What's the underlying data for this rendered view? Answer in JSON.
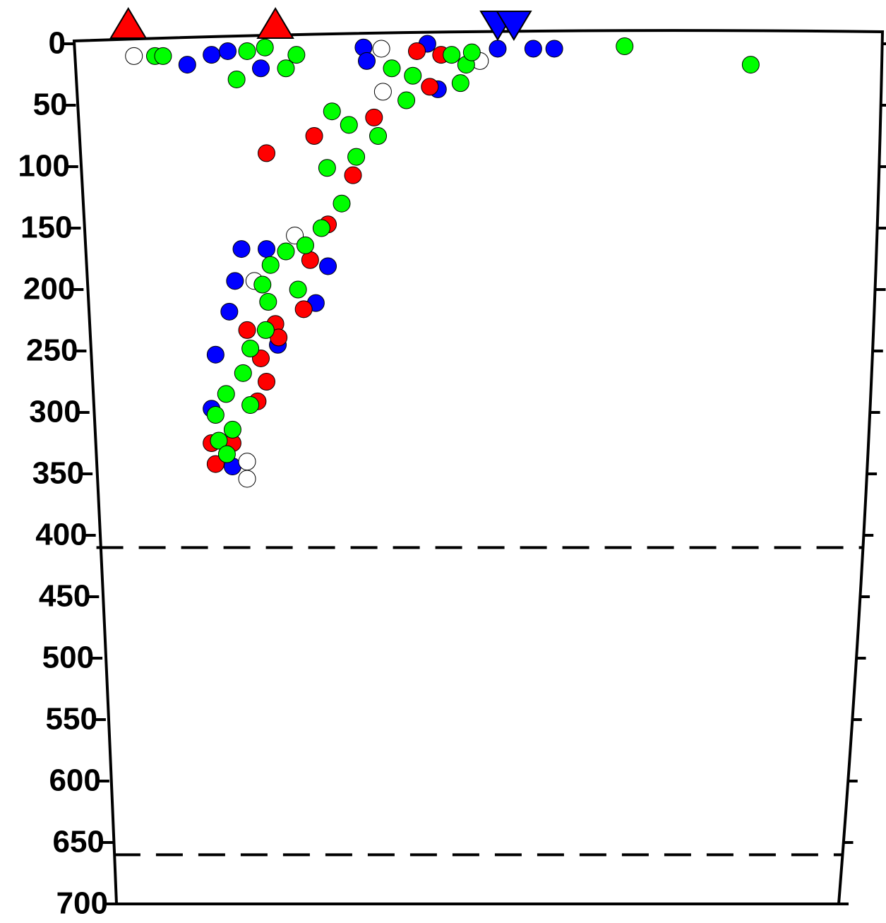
{
  "chart_data": {
    "type": "scatter",
    "xlim": [
      0,
      100
    ],
    "ylim": [
      0,
      700
    ],
    "y_reversed": true,
    "yticks": [
      0,
      50,
      100,
      150,
      200,
      250,
      300,
      350,
      400,
      450,
      500,
      550,
      600,
      650,
      700
    ],
    "discontinuities": [
      410,
      660
    ],
    "series": [
      {
        "color": "#0000ff",
        "x": [
          14,
          17,
          19,
          23.1,
          35.8,
          36.2,
          43.7,
          52.4,
          56.8,
          59.4,
          20.7,
          23.8,
          19.9,
          31.4,
          29.9,
          19.2,
          17.5,
          25.2,
          17,
          19.6,
          45
        ],
        "values": [
          17,
          9,
          6,
          20,
          3,
          14,
          0,
          4,
          4,
          4,
          167,
          167,
          193,
          181,
          211,
          218,
          253,
          245,
          297,
          344,
          37
        ]
      },
      {
        "color": "#ff0000",
        "x": [
          42.4,
          45.4,
          44,
          29.7,
          23.8,
          37.1,
          34.5,
          31.4,
          29.2,
          28.4,
          24.9,
          25.3,
          21.4,
          23.1,
          23.8,
          22.7,
          17,
          17.5,
          19.6
        ],
        "values": [
          6,
          9,
          35,
          75,
          89,
          60,
          107,
          147,
          176,
          216,
          228,
          239,
          233,
          256,
          275,
          291,
          325,
          342,
          325
        ]
      },
      {
        "color": "#ffffff",
        "x": [
          7.4,
          38,
          38.2,
          50.2,
          27.3,
          22.3,
          21.4,
          21.4
        ],
        "values": [
          10,
          4,
          39,
          14,
          156,
          193,
          340,
          354
        ]
      },
      {
        "color": "#00ff00",
        "x": [
          10,
          11,
          68.1,
          83.7,
          20.1,
          21.4,
          23.6,
          26.2,
          27.5,
          39.3,
          41.1,
          41.9,
          46.7,
          48.5,
          47.8,
          49.2,
          37.6,
          34,
          31.9,
          31.3,
          34.9,
          33.1,
          30.6,
          28.6,
          26.2,
          24.3,
          23.3,
          27.7,
          24,
          23.7,
          21.8,
          20.9,
          18.8,
          21.8,
          17.5,
          19.6,
          17.9,
          18.9
        ],
        "values": [
          10,
          10,
          2,
          17,
          29,
          6,
          3,
          20,
          9,
          20,
          46,
          26,
          9,
          17,
          32,
          7,
          75,
          66,
          55,
          101,
          92,
          130,
          150,
          164,
          169,
          180,
          196,
          200,
          210,
          233,
          248,
          268,
          285,
          294,
          302,
          314,
          323,
          334
        ]
      }
    ],
    "volcanoes": {
      "color": "#ff0000",
      "x": [
        6.7,
        24.9
      ]
    },
    "trench": {
      "color": "#0000ff",
      "x": [
        52.4,
        54.4
      ]
    }
  }
}
